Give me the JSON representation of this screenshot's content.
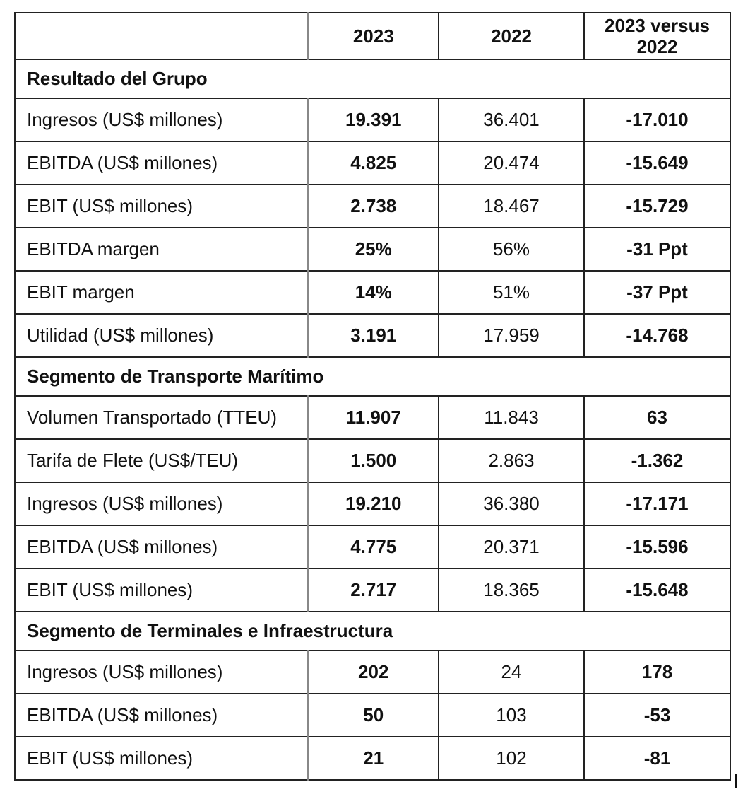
{
  "header": [
    "",
    "2023",
    "2022",
    "2023 versus 2022"
  ],
  "sections": [
    {
      "title": "Resultado del Grupo",
      "rows": [
        [
          "Ingresos (US$ millones)",
          "19.391",
          "36.401",
          "-17.010"
        ],
        [
          "EBITDA (US$ millones)",
          "4.825",
          "20.474",
          "-15.649"
        ],
        [
          "EBIT (US$ millones)",
          "2.738",
          "18.467",
          "-15.729"
        ],
        [
          "EBITDA margen",
          "25%",
          "56%",
          "-31 Ppt"
        ],
        [
          "EBIT margen",
          "14%",
          "51%",
          "-37 Ppt"
        ],
        [
          "Utilidad (US$ millones)",
          "3.191",
          "17.959",
          "-14.768"
        ]
      ]
    },
    {
      "title": "Segmento de Transporte Marítimo",
      "rows": [
        [
          "Volumen Transportado (TTEU)",
          "11.907",
          "11.843",
          "63"
        ],
        [
          "Tarifa de Flete (US$/TEU)",
          "1.500",
          "2.863",
          "-1.362"
        ],
        [
          "Ingresos (US$ millones)",
          "19.210",
          "36.380",
          "-17.171"
        ],
        [
          "EBITDA (US$ millones)",
          "4.775",
          "20.371",
          "-15.596"
        ],
        [
          "EBIT (US$ millones)",
          "2.717",
          "18.365",
          "-15.648"
        ]
      ]
    },
    {
      "title": "Segmento de Terminales e Infraestructura",
      "rows": [
        [
          "Ingresos (US$ millones)",
          "202",
          "24",
          "178"
        ],
        [
          "EBITDA (US$ millones)",
          "50",
          "103",
          "-53"
        ],
        [
          "EBIT (US$ millones)",
          "21",
          "102",
          "-81"
        ]
      ]
    }
  ]
}
